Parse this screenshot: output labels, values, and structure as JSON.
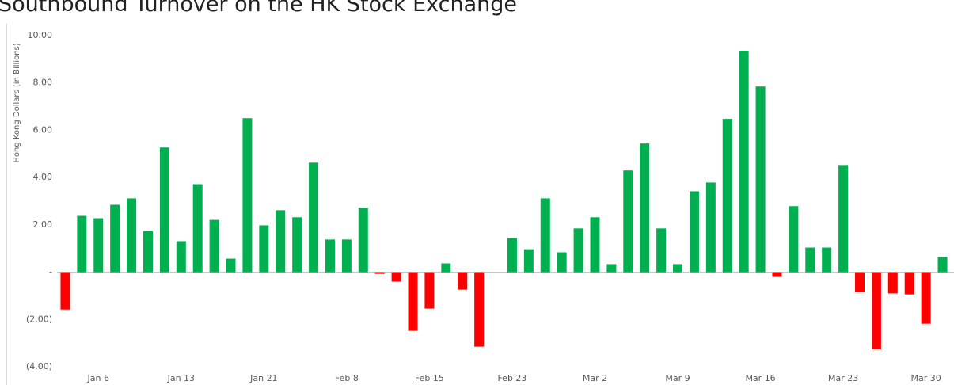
{
  "chart_data": {
    "type": "bar",
    "title": "Southbound Turnover on the HK Stock Exchange",
    "y_label": "Hong Kong Dollars (in Billions)",
    "categories": [
      null,
      null,
      "Jan 6",
      null,
      null,
      null,
      null,
      "Jan 13",
      null,
      null,
      null,
      null,
      "Jan 21",
      null,
      null,
      null,
      null,
      "Feb 8",
      null,
      null,
      null,
      null,
      "Feb 15",
      null,
      null,
      null,
      null,
      "Feb 23",
      null,
      null,
      null,
      null,
      "Mar 2",
      null,
      null,
      null,
      null,
      "Mar 9",
      null,
      null,
      null,
      null,
      "Mar 16",
      null,
      null,
      null,
      null,
      "Mar 23",
      null,
      null,
      null,
      null,
      "Mar 30",
      null
    ],
    "values": [
      -1.58,
      2.38,
      2.28,
      2.85,
      3.12,
      1.74,
      5.27,
      1.31,
      3.72,
      2.21,
      0.57,
      6.51,
      1.98,
      2.62,
      2.32,
      4.63,
      1.38,
      1.38,
      2.72,
      -0.07,
      -0.4,
      -2.48,
      -1.54,
      0.37,
      -0.74,
      -3.15,
      null,
      1.44,
      0.97,
      3.12,
      0.84,
      1.85,
      2.32,
      0.34,
      4.3,
      5.44,
      1.85,
      0.34,
      3.42,
      3.79,
      6.48,
      9.36,
      7.85,
      -0.2,
      2.79,
      1.04,
      1.04,
      4.53,
      -0.84,
      -3.26,
      -0.9,
      -0.94,
      -2.18,
      0.64
    ],
    "positive_color": "#00b050",
    "negative_color": "#ff0000",
    "ylim": [
      -4,
      10
    ],
    "yticks": [
      {
        "value": 10,
        "label": "10.00"
      },
      {
        "value": 8,
        "label": "8.00"
      },
      {
        "value": 6,
        "label": "6.00"
      },
      {
        "value": 4,
        "label": "4.00"
      },
      {
        "value": 2,
        "label": "2.00"
      },
      {
        "value": 0,
        "label": "-"
      },
      {
        "value": -2,
        "label": "(2.00)"
      },
      {
        "value": -4,
        "label": "(4.00)"
      }
    ],
    "grid": false
  }
}
